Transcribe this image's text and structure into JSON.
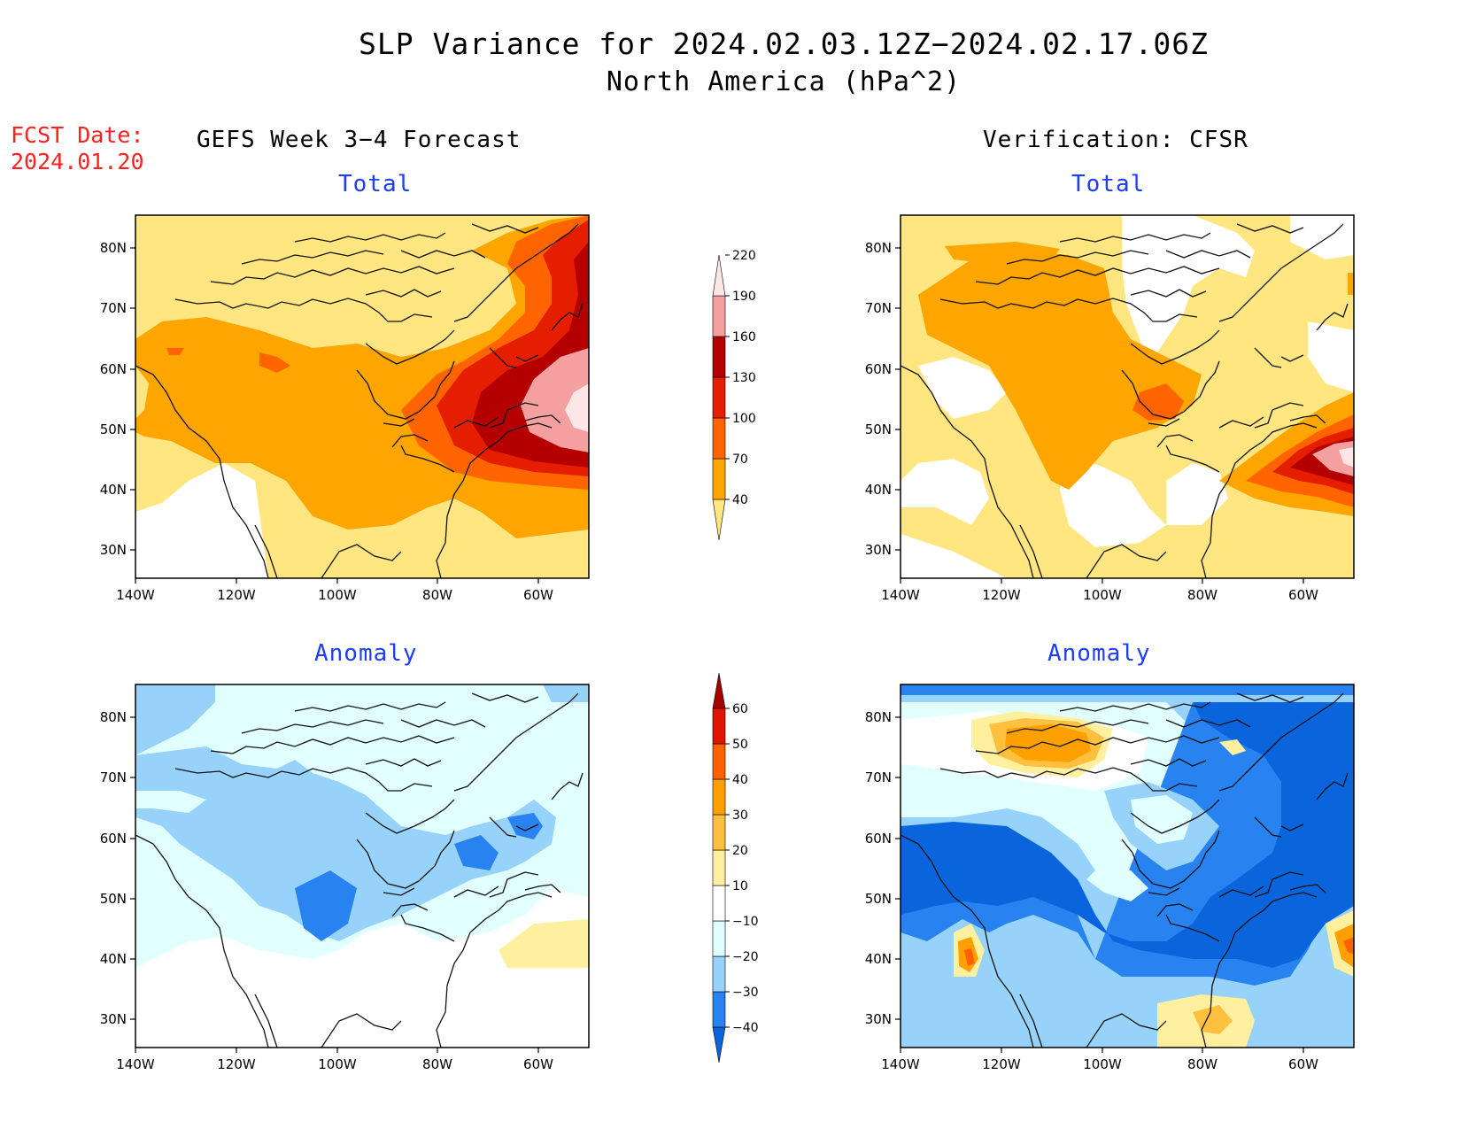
{
  "title": "SLP Variance for 2024.02.03.12Z−2024.02.17.06Z",
  "subtitle": "North America (hPa^2)",
  "fcst_label": "FCST Date:",
  "fcst_date": "2024.01.20",
  "left_column_title": "GEFS Week 3−4 Forecast",
  "right_column_title": "Verification: CFSR",
  "panels": [
    {
      "id": "gefs-total",
      "title": "Total"
    },
    {
      "id": "cfsr-total",
      "title": "Total"
    },
    {
      "id": "gefs-anomaly",
      "title": "Anomaly"
    },
    {
      "id": "cfsr-anomaly",
      "title": "Anomaly"
    }
  ],
  "axes": {
    "lon_labels": [
      "140W",
      "120W",
      "100W",
      "80W",
      "60W"
    ],
    "lat_labels": [
      "80N",
      "70N",
      "60N",
      "50N",
      "40N",
      "30N"
    ]
  },
  "total_colorbar": {
    "levels": [
      "40",
      "70",
      "100",
      "130",
      "160",
      "190",
      "220"
    ],
    "colors": [
      "#ffe680",
      "#ffa500",
      "#ff6400",
      "#e61e00",
      "#b40000",
      "#f4a0a0",
      "#fde6e6"
    ]
  },
  "anomaly_colorbar": {
    "levels": [
      "−40",
      "−30",
      "−20",
      "−10",
      "10",
      "20",
      "30",
      "40",
      "50",
      "60"
    ],
    "colors": [
      "#0a64dc",
      "#2882f0",
      "#96d2fa",
      "#e1ffff",
      "#ffffff",
      "#fff0a0",
      "#ffc040",
      "#ffa000",
      "#ff6000",
      "#e11400",
      "#a50000"
    ]
  }
}
